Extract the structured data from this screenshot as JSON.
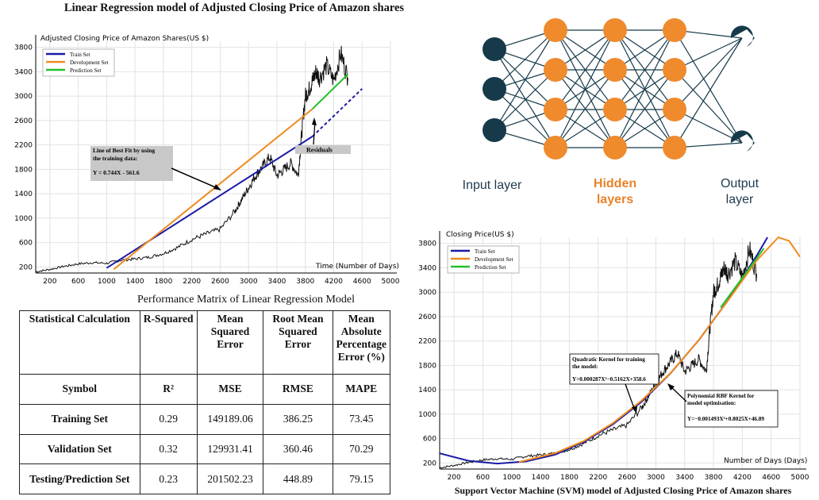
{
  "lr_chart": {
    "title": "Linear Regression model of Adjusted Closing Price of Amazon shares",
    "chart_data": {
      "type": "line",
      "title": "Linear Regression model of Adjusted Closing Price of Amazon shares",
      "ylabel": "Adjusted Closing Price of Amazon Shares(US $)",
      "xlabel": "Time (Number of Days)",
      "xlim": [
        0,
        5000
      ],
      "ylim": [
        100,
        3900
      ],
      "xticks": [
        200,
        600,
        1000,
        1400,
        1800,
        2200,
        2600,
        3000,
        3400,
        3800,
        4200,
        4600,
        5000
      ],
      "yticks": [
        200,
        600,
        1000,
        1400,
        1800,
        2200,
        2600,
        3000,
        3400,
        3800
      ],
      "legend_position": "top-left",
      "grid": true,
      "series": [
        {
          "name": "Train Set",
          "color": "#1a1aa6",
          "x": [
            1000,
            3900
          ],
          "y": [
            182,
            2340
          ]
        },
        {
          "name": "Development Set",
          "color": "#f08a1c",
          "x": [
            1100,
            3900
          ],
          "y": [
            160,
            2790
          ]
        },
        {
          "name": "Prediction Set",
          "color": "#22c02a",
          "x": [
            3900,
            4400
          ],
          "y": [
            2790,
            3360
          ]
        }
      ],
      "projection": {
        "color": "#1a1aa6",
        "x": [
          3900,
          4600
        ],
        "y": [
          2340,
          3120
        ]
      },
      "price": {
        "color": "#111111",
        "x": [
          0,
          200,
          400,
          600,
          800,
          1000,
          1200,
          1400,
          1600,
          1800,
          2000,
          2200,
          2400,
          2600,
          2800,
          2900,
          3000,
          3100,
          3200,
          3300,
          3400,
          3500,
          3600,
          3700,
          3750,
          3800,
          3850,
          3900,
          3950,
          4000,
          4100,
          4200,
          4300,
          4400
        ],
        "y": [
          120,
          160,
          210,
          250,
          270,
          260,
          310,
          330,
          360,
          420,
          520,
          650,
          740,
          820,
          1100,
          1300,
          1500,
          1700,
          1850,
          2000,
          1700,
          1800,
          1900,
          1700,
          2400,
          3000,
          3100,
          3250,
          3400,
          3300,
          3500,
          3250,
          3700,
          3300
        ]
      },
      "annotations": [
        {
          "text": "Line of Best Fit by using the training data:",
          "equation": "Y = 0.744X - 561.6"
        },
        {
          "text": "Residuals"
        }
      ]
    }
  },
  "nn": {
    "input_label": "Input layer",
    "hidden_label_1": "Hidden",
    "hidden_label_2": "layers",
    "output_label_1": "Output",
    "output_label_2": "layer",
    "colors": {
      "input": "#163a4a",
      "hidden": "#ef8a2d",
      "edges": "#163a4a"
    }
  },
  "perf_table": {
    "title": "Performance Matrix of Linear Regression Model",
    "headers": [
      "Statistical Calculation",
      "R-Squared",
      "Mean Squared Error",
      "Root Mean Squared Error",
      "Mean Absolute Percentage Error (%)"
    ],
    "symbol_row": [
      "Symbol",
      "R²",
      "MSE",
      "RMSE",
      "MAPE"
    ],
    "rows": [
      [
        "Training Set",
        "0.29",
        "149189.06",
        "386.25",
        "73.45"
      ],
      [
        "Validation Set",
        "0.32",
        "129931.41",
        "360.46",
        "70.29"
      ],
      [
        "Testing/Prediction Set",
        "0.23",
        "201502.23",
        "448.89",
        "79.15"
      ]
    ]
  },
  "svm_chart": {
    "caption": "Support Vector Machine (SVM) model of Adjusted Closing Price of Amazon shares",
    "chart_data": {
      "type": "line",
      "title": "Support Vector Machine (SVM) model of Adjusted Closing Price of Amazon shares",
      "ylabel": "Closing Price(US $)",
      "xlabel": "Number of Days (Days)",
      "xlim": [
        0,
        5000
      ],
      "ylim": [
        100,
        3900
      ],
      "xticks": [
        200,
        600,
        1000,
        1400,
        1800,
        2200,
        2600,
        3000,
        3400,
        3800,
        4200,
        4600,
        5000
      ],
      "yticks": [
        200,
        600,
        1000,
        1400,
        1800,
        2200,
        2600,
        3000,
        3400,
        3800
      ],
      "legend_position": "top-left",
      "grid": true,
      "series": [
        {
          "name": "Train Set",
          "color": "#1a1aa6",
          "x": [
            0,
            400,
            800,
            1200,
            1600,
            2000,
            2400,
            2800,
            3200,
            3600,
            4000,
            4400,
            4550
          ],
          "y": [
            358,
            235,
            190,
            225,
            335,
            545,
            830,
            1200,
            1665,
            2220,
            2865,
            3600,
            3900
          ]
        },
        {
          "name": "Development Set",
          "color": "#f08a1c",
          "x": [
            1100,
            1600,
            2000,
            2400,
            2800,
            3200,
            3600,
            4000,
            4400,
            4700,
            4850,
            5000
          ],
          "y": [
            215,
            360,
            560,
            850,
            1220,
            1670,
            2220,
            2860,
            3520,
            3900,
            3840,
            3580
          ]
        },
        {
          "name": "Prediction Set",
          "color": "#22c02a",
          "x": [
            3900,
            4500
          ],
          "y": [
            2750,
            3720
          ]
        }
      ],
      "price": {
        "color": "#111111",
        "x": [
          0,
          200,
          400,
          600,
          800,
          1000,
          1200,
          1400,
          1600,
          1800,
          2000,
          2200,
          2400,
          2600,
          2800,
          2900,
          3000,
          3100,
          3200,
          3300,
          3400,
          3500,
          3600,
          3700,
          3750,
          3800,
          3850,
          3900,
          3950,
          4000,
          4100,
          4200,
          4300,
          4400
        ],
        "y": [
          120,
          160,
          210,
          250,
          270,
          260,
          310,
          330,
          360,
          420,
          520,
          650,
          740,
          820,
          1100,
          1300,
          1500,
          1700,
          1850,
          2000,
          1700,
          1800,
          1900,
          1700,
          2400,
          3000,
          3100,
          3250,
          3400,
          3300,
          3500,
          3250,
          3700,
          3300
        ]
      },
      "annotations": [
        {
          "text": "Quadratic Kernel for training the model:",
          "equation": "Y=0.000287X²−0.5162X+358.6"
        },
        {
          "text": "Polynomial RBF Kernel for model optimisation:",
          "equation": "Y=−0.001493X²+0.8025X+46.89"
        }
      ]
    }
  }
}
